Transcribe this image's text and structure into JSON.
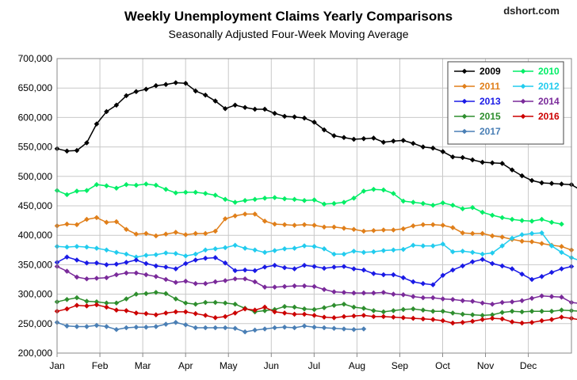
{
  "chart_data": {
    "type": "line",
    "title": "Weekly Unemployment Claims Yearly Comparisons",
    "subtitle": "Seasonally Adjusted Four-Week Moving Average",
    "credit": "dshort.com",
    "xlabel": "",
    "ylabel": "",
    "ylim": [
      200000,
      700000
    ],
    "y_ticks": [
      "200,000",
      "250,000",
      "300,000",
      "350,000",
      "400,000",
      "450,000",
      "500,000",
      "550,000",
      "600,000",
      "650,000",
      "700,000"
    ],
    "x_ticks": [
      "Jan",
      "Feb",
      "Mar",
      "Apr",
      "May",
      "Jun",
      "Jul",
      "Aug",
      "Sep",
      "Oct",
      "Nov",
      "Dec"
    ],
    "x_unit": "week of year",
    "grid": true,
    "legend_placement": "top-right",
    "series": [
      {
        "name": "2009",
        "color": "#000000",
        "values": [
          547000,
          543000,
          544000,
          557000,
          589000,
          610000,
          621000,
          637000,
          644000,
          648000,
          654000,
          656000,
          659000,
          658000,
          645000,
          638000,
          628000,
          615000,
          621000,
          617000,
          614000,
          614000,
          607000,
          602000,
          601000,
          599000,
          592000,
          579000,
          569000,
          566000,
          563000,
          564000,
          565000,
          558000,
          560000,
          561000,
          556000,
          550000,
          548000,
          542000,
          533000,
          532000,
          528000,
          524000,
          523000,
          522000,
          511000,
          501000,
          493000,
          489000,
          488000,
          487000,
          486000,
          476000
        ]
      },
      {
        "name": "2010",
        "color": "#00ee66",
        "values": [
          476000,
          469000,
          475000,
          476000,
          486000,
          484000,
          480000,
          486000,
          485000,
          487000,
          485000,
          478000,
          472000,
          473000,
          473000,
          471000,
          468000,
          461000,
          456000,
          459000,
          461000,
          463000,
          464000,
          462000,
          461000,
          459000,
          460000,
          453000,
          454000,
          456000,
          463000,
          475000,
          478000,
          477000,
          471000,
          458000,
          456000,
          454000,
          451000,
          455000,
          451000,
          445000,
          447000,
          439000,
          434000,
          430000,
          427000,
          425000,
          424000,
          427000,
          422000,
          419000
        ]
      },
      {
        "name": "2011",
        "color": "#e07f1a",
        "values": [
          416000,
          419000,
          418000,
          427000,
          430000,
          422000,
          423000,
          410000,
          402000,
          403000,
          399000,
          402000,
          405000,
          401000,
          403000,
          403000,
          407000,
          428000,
          433000,
          436000,
          436000,
          424000,
          419000,
          418000,
          417000,
          418000,
          417000,
          414000,
          414000,
          412000,
          410000,
          407000,
          408000,
          409000,
          409000,
          411000,
          416000,
          418000,
          418000,
          417000,
          413000,
          404000,
          403000,
          403000,
          399000,
          397000,
          393000,
          390000,
          389000,
          386000,
          383000,
          381000,
          375000
        ]
      },
      {
        "name": "2012",
        "color": "#22ccee",
        "values": [
          381000,
          380000,
          381000,
          380000,
          378000,
          375000,
          371000,
          368000,
          363000,
          366000,
          367000,
          370000,
          369000,
          365000,
          368000,
          375000,
          377000,
          379000,
          383000,
          378000,
          375000,
          371000,
          374000,
          377000,
          378000,
          382000,
          381000,
          377000,
          368000,
          368000,
          373000,
          371000,
          372000,
          374000,
          375000,
          376000,
          383000,
          382000,
          382000,
          385000,
          372000,
          373000,
          371000,
          368000,
          370000,
          382000,
          395000,
          401000,
          403000,
          404000,
          382000,
          371000,
          362000,
          356000,
          353000
        ]
      },
      {
        "name": "2013",
        "color": "#1a1ae6",
        "values": [
          354000,
          363000,
          358000,
          353000,
          353000,
          350000,
          351000,
          354000,
          358000,
          352000,
          348000,
          346000,
          343000,
          352000,
          358000,
          361000,
          362000,
          353000,
          340000,
          341000,
          340000,
          346000,
          349000,
          345000,
          343000,
          349000,
          347000,
          344000,
          346000,
          347000,
          343000,
          341000,
          335000,
          333000,
          333000,
          328000,
          321000,
          318000,
          316000,
          332000,
          341000,
          348000,
          355000,
          359000,
          352000,
          348000,
          343000,
          334000,
          325000,
          330000,
          337000,
          343000,
          347000
        ]
      },
      {
        "name": "2014",
        "color": "#7a2a9a",
        "values": [
          347000,
          339000,
          329000,
          326000,
          327000,
          328000,
          333000,
          336000,
          336000,
          333000,
          330000,
          325000,
          320000,
          322000,
          318000,
          318000,
          321000,
          323000,
          326000,
          326000,
          321000,
          312000,
          312000,
          313000,
          314000,
          314000,
          313000,
          308000,
          304000,
          303000,
          302000,
          302000,
          302000,
          303000,
          300000,
          299000,
          296000,
          294000,
          294000,
          292000,
          291000,
          289000,
          288000,
          285000,
          283000,
          286000,
          287000,
          289000,
          293000,
          297000,
          296000,
          295000,
          286000,
          284000
        ]
      },
      {
        "name": "2015",
        "color": "#2e8e2e",
        "values": [
          287000,
          291000,
          294000,
          288000,
          287000,
          285000,
          285000,
          292000,
          300000,
          301000,
          303000,
          301000,
          292000,
          285000,
          283000,
          286000,
          286000,
          285000,
          283000,
          276000,
          270000,
          272000,
          274000,
          279000,
          278000,
          275000,
          274000,
          277000,
          281000,
          283000,
          278000,
          276000,
          272000,
          270000,
          272000,
          274000,
          275000,
          273000,
          271000,
          271000,
          268000,
          266000,
          265000,
          264000,
          265000,
          269000,
          271000,
          270000,
          271000,
          271000,
          271000,
          273000,
          272000,
          271000
        ]
      },
      {
        "name": "2016",
        "color": "#cc0000",
        "values": [
          271000,
          275000,
          281000,
          280000,
          282000,
          278000,
          273000,
          272000,
          268000,
          267000,
          265000,
          268000,
          270000,
          270000,
          267000,
          264000,
          260000,
          262000,
          268000,
          275000,
          273000,
          278000,
          270000,
          268000,
          266000,
          266000,
          264000,
          261000,
          260000,
          262000,
          263000,
          264000,
          262000,
          262000,
          261000,
          260000,
          259000,
          258000,
          257000,
          255000,
          251000,
          252000,
          254000,
          257000,
          259000,
          258000,
          253000,
          251000,
          252000,
          255000,
          257000,
          261000,
          259000,
          256000,
          254000
        ]
      },
      {
        "name": "2017",
        "color": "#4a7fb5",
        "values": [
          252000,
          246000,
          245000,
          245000,
          247000,
          245000,
          240000,
          243000,
          244000,
          244000,
          245000,
          249000,
          252000,
          248000,
          243000,
          243000,
          243000,
          243000,
          242000,
          236000,
          239000,
          241000,
          243000,
          244000,
          243000,
          246000,
          244000,
          243000,
          242000,
          241000,
          240000,
          241000
        ]
      }
    ]
  }
}
